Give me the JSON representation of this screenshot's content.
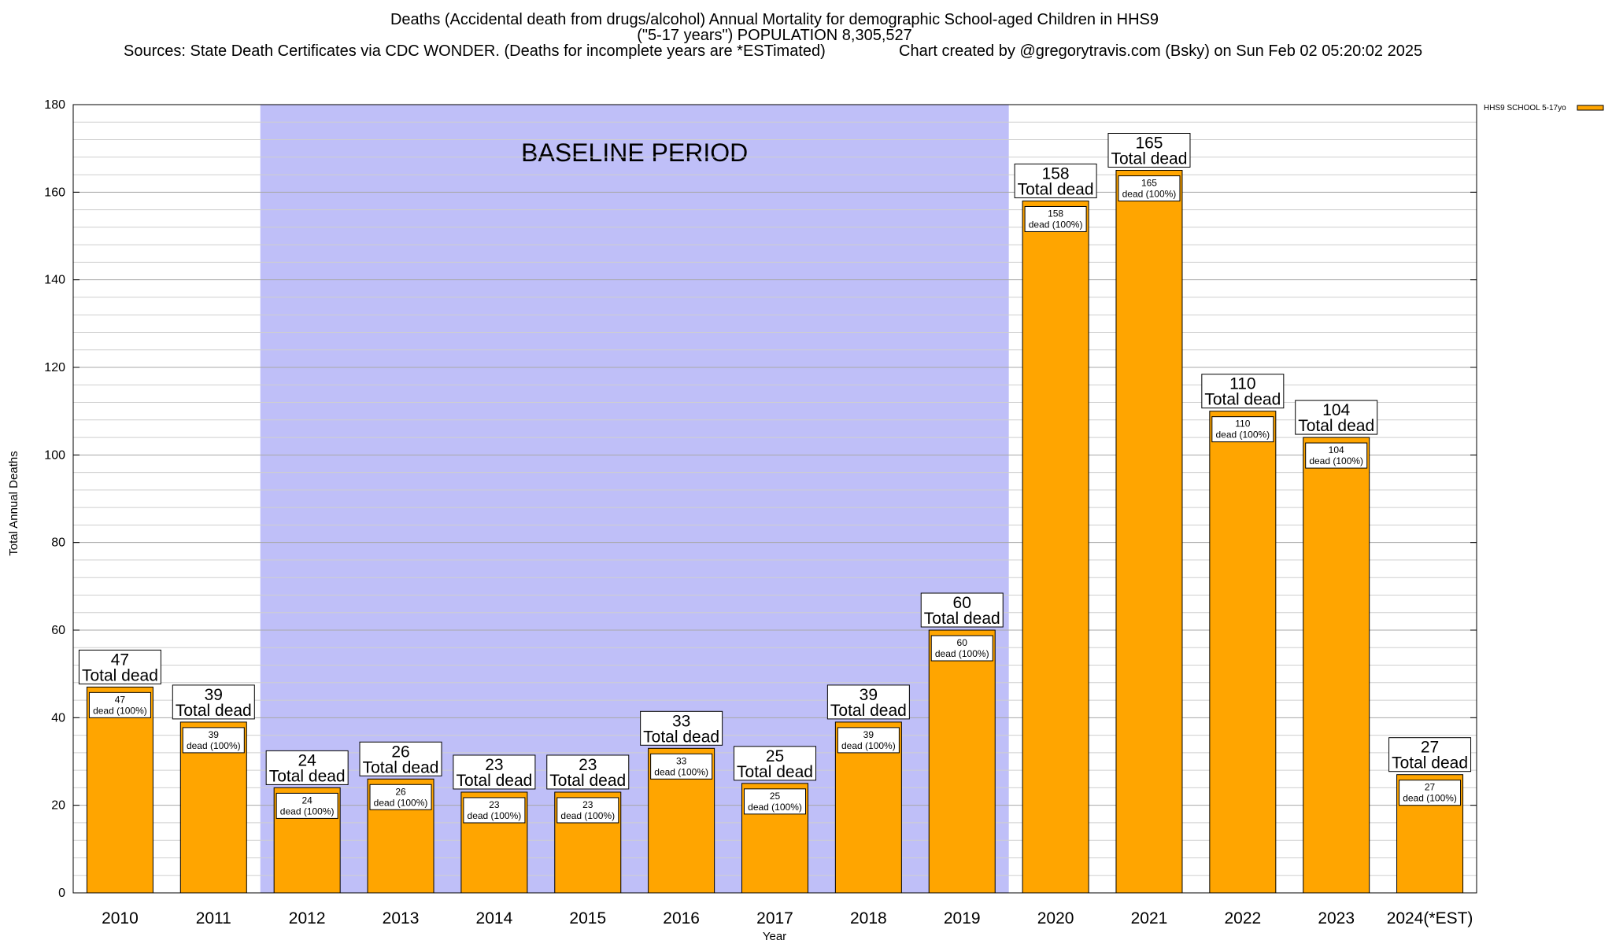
{
  "chart_data": {
    "type": "bar",
    "title_lines": [
      "Deaths (Accidental death from drugs/alcohol) Annual Mortality for demographic School-aged Children in HHS9",
      "(\"5-17 years\") POPULATION 8,305,527"
    ],
    "sources": "Sources: State Death Certificates via CDC WONDER. (Deaths for incomplete years are *ESTimated)",
    "credit": "Chart created by @gregorytravis.com (Bsky) on Sun Feb 02 05:20:02 2025",
    "xlabel": "Year",
    "ylabel": "Total Annual Deaths",
    "ylim": [
      0,
      180
    ],
    "y_ticks": [
      0,
      20,
      40,
      60,
      80,
      100,
      120,
      140,
      160,
      180
    ],
    "y_minor_step": 4,
    "grid": true,
    "categories": [
      "2010",
      "2011",
      "2012",
      "2013",
      "2014",
      "2015",
      "2016",
      "2017",
      "2018",
      "2019",
      "2020",
      "2021",
      "2022",
      "2023",
      "2024(*EST)"
    ],
    "series": [
      {
        "name": "HHS9 SCHOOL 5-17yo",
        "color": "#ffa500",
        "values": [
          47,
          39,
          24,
          26,
          23,
          23,
          33,
          25,
          39,
          60,
          158,
          165,
          110,
          104,
          27
        ]
      }
    ],
    "total_label_suffix": "Total dead",
    "inner_label_suffix": "dead (100%)",
    "highlight_region": {
      "label": "BASELINE PERIOD",
      "from_category": "2012",
      "to_category": "2019",
      "color": "#bfbff8"
    },
    "legend_placement": "top-right"
  }
}
